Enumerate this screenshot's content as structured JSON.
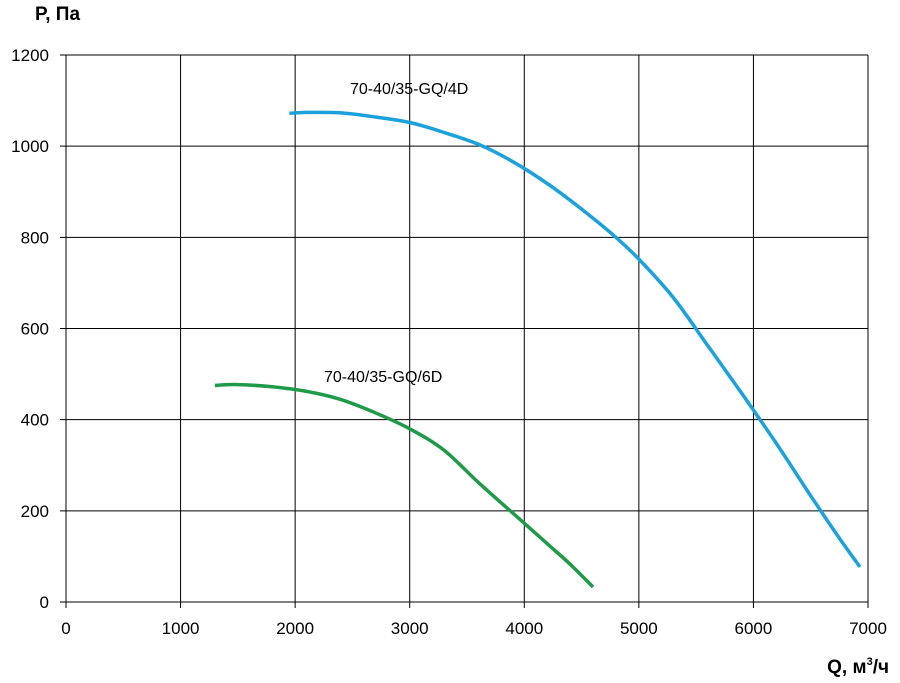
{
  "chart_data": {
    "type": "line",
    "xlabel": "Q, м",
    "xlabel_sup": "3",
    "xlabel_suffix": "/ч",
    "ylabel": "P, Па",
    "xlim": [
      0,
      7000
    ],
    "ylim": [
      0,
      1200
    ],
    "x_ticks": [
      "0",
      "1000",
      "2000",
      "3000",
      "4000",
      "5000",
      "6000",
      "7000"
    ],
    "y_ticks": [
      "0",
      "200",
      "400",
      "600",
      "800",
      "1000",
      "1200"
    ],
    "grid": true,
    "series": [
      {
        "name": "70-40/35-GQ/4D",
        "color": "#1ba1dc",
        "points": [
          [
            1950,
            1072
          ],
          [
            2100,
            1074
          ],
          [
            2400,
            1073
          ],
          [
            2700,
            1064
          ],
          [
            3000,
            1052
          ],
          [
            3300,
            1030
          ],
          [
            3600,
            1004
          ],
          [
            3900,
            966
          ],
          [
            4200,
            918
          ],
          [
            4500,
            862
          ],
          [
            4800,
            800
          ],
          [
            5000,
            752
          ],
          [
            5300,
            668
          ],
          [
            5600,
            563
          ],
          [
            5900,
            457
          ],
          [
            6200,
            348
          ],
          [
            6500,
            233
          ],
          [
            6750,
            140
          ],
          [
            6930,
            77
          ]
        ]
      },
      {
        "name": "70-40/35-GQ/6D",
        "color": "#1e9a48",
        "points": [
          [
            1300,
            475
          ],
          [
            1500,
            477
          ],
          [
            1800,
            472
          ],
          [
            2100,
            462
          ],
          [
            2400,
            444
          ],
          [
            2700,
            415
          ],
          [
            3000,
            380
          ],
          [
            3300,
            333
          ],
          [
            3600,
            262
          ],
          [
            3900,
            195
          ],
          [
            4200,
            128
          ],
          [
            4400,
            83
          ],
          [
            4600,
            33
          ]
        ]
      }
    ]
  }
}
